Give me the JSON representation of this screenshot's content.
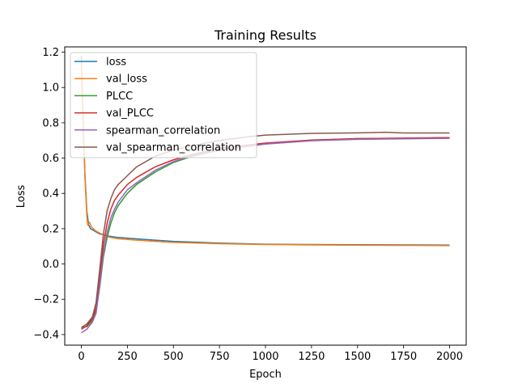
{
  "chart_data": {
    "type": "line",
    "title": "Training Results",
    "xlabel": "Epoch",
    "ylabel": "Loss",
    "xlim": [
      -90,
      2090
    ],
    "ylim": [
      -0.46,
      1.23
    ],
    "xticks": [
      0,
      250,
      500,
      750,
      1000,
      1250,
      1500,
      1750,
      2000
    ],
    "yticks": [
      -0.4,
      -0.2,
      0.0,
      0.2,
      0.4,
      0.6,
      0.8,
      1.0,
      1.2
    ],
    "ytick_labels": [
      "−0.4",
      "−0.2",
      "0.0",
      "0.2",
      "0.4",
      "0.6",
      "0.8",
      "1.0",
      "1.2"
    ],
    "grid": false,
    "legend_position": "top-left",
    "series": [
      {
        "name": "loss",
        "color": "#1f77b4",
        "points": [
          [
            0,
            1.18
          ],
          [
            10,
            0.8
          ],
          [
            20,
            0.5
          ],
          [
            30,
            0.3
          ],
          [
            40,
            0.22
          ],
          [
            50,
            0.2
          ],
          [
            75,
            0.185
          ],
          [
            100,
            0.17
          ],
          [
            150,
            0.158
          ],
          [
            200,
            0.15
          ],
          [
            300,
            0.142
          ],
          [
            400,
            0.135
          ],
          [
            500,
            0.128
          ],
          [
            750,
            0.118
          ],
          [
            1000,
            0.112
          ],
          [
            1250,
            0.11
          ],
          [
            1500,
            0.109
          ],
          [
            1750,
            0.108
          ],
          [
            2000,
            0.107
          ]
        ]
      },
      {
        "name": "val_loss",
        "color": "#ff7f0e",
        "points": [
          [
            0,
            1.15
          ],
          [
            10,
            0.78
          ],
          [
            20,
            0.48
          ],
          [
            30,
            0.27
          ],
          [
            35,
            0.22
          ],
          [
            45,
            0.235
          ],
          [
            55,
            0.21
          ],
          [
            75,
            0.19
          ],
          [
            100,
            0.175
          ],
          [
            150,
            0.152
          ],
          [
            200,
            0.143
          ],
          [
            300,
            0.135
          ],
          [
            400,
            0.128
          ],
          [
            500,
            0.122
          ],
          [
            750,
            0.115
          ],
          [
            1000,
            0.11
          ],
          [
            1250,
            0.108
          ],
          [
            1500,
            0.106
          ],
          [
            1750,
            0.105
          ],
          [
            2000,
            0.104
          ]
        ]
      },
      {
        "name": "PLCC",
        "color": "#2ca02c",
        "points": [
          [
            0,
            -0.36
          ],
          [
            30,
            -0.355
          ],
          [
            60,
            -0.32
          ],
          [
            80,
            -0.27
          ],
          [
            100,
            -0.13
          ],
          [
            120,
            0.04
          ],
          [
            140,
            0.15
          ],
          [
            160,
            0.23
          ],
          [
            180,
            0.29
          ],
          [
            200,
            0.33
          ],
          [
            250,
            0.4
          ],
          [
            300,
            0.45
          ],
          [
            400,
            0.52
          ],
          [
            500,
            0.575
          ],
          [
            600,
            0.61
          ],
          [
            750,
            0.645
          ],
          [
            1000,
            0.68
          ],
          [
            1250,
            0.7
          ],
          [
            1500,
            0.71
          ],
          [
            1750,
            0.712
          ],
          [
            2000,
            0.715
          ]
        ]
      },
      {
        "name": "val_PLCC",
        "color": "#d62728",
        "points": [
          [
            0,
            -0.37
          ],
          [
            30,
            -0.35
          ],
          [
            60,
            -0.31
          ],
          [
            80,
            -0.25
          ],
          [
            100,
            -0.08
          ],
          [
            120,
            0.11
          ],
          [
            140,
            0.23
          ],
          [
            160,
            0.31
          ],
          [
            180,
            0.36
          ],
          [
            200,
            0.39
          ],
          [
            250,
            0.45
          ],
          [
            300,
            0.49
          ],
          [
            400,
            0.55
          ],
          [
            500,
            0.59
          ],
          [
            600,
            0.62
          ],
          [
            750,
            0.655
          ],
          [
            1000,
            0.685
          ],
          [
            1250,
            0.702
          ],
          [
            1500,
            0.71
          ],
          [
            1750,
            0.713
          ],
          [
            2000,
            0.716
          ]
        ]
      },
      {
        "name": "spearman_correlation",
        "color": "#9467bd",
        "points": [
          [
            0,
            -0.39
          ],
          [
            30,
            -0.37
          ],
          [
            60,
            -0.33
          ],
          [
            80,
            -0.28
          ],
          [
            100,
            -0.12
          ],
          [
            120,
            0.06
          ],
          [
            140,
            0.18
          ],
          [
            160,
            0.26
          ],
          [
            180,
            0.31
          ],
          [
            200,
            0.35
          ],
          [
            250,
            0.42
          ],
          [
            300,
            0.46
          ],
          [
            400,
            0.53
          ],
          [
            500,
            0.58
          ],
          [
            600,
            0.615
          ],
          [
            750,
            0.648
          ],
          [
            1000,
            0.68
          ],
          [
            1250,
            0.698
          ],
          [
            1500,
            0.706
          ],
          [
            1750,
            0.709
          ],
          [
            2000,
            0.712
          ]
        ]
      },
      {
        "name": "val_spearman_correlation",
        "color": "#8c564b",
        "points": [
          [
            0,
            -0.36
          ],
          [
            30,
            -0.34
          ],
          [
            60,
            -0.3
          ],
          [
            80,
            -0.22
          ],
          [
            100,
            -0.03
          ],
          [
            120,
            0.17
          ],
          [
            140,
            0.3
          ],
          [
            160,
            0.37
          ],
          [
            180,
            0.42
          ],
          [
            200,
            0.45
          ],
          [
            250,
            0.5
          ],
          [
            300,
            0.55
          ],
          [
            400,
            0.61
          ],
          [
            500,
            0.645
          ],
          [
            600,
            0.67
          ],
          [
            750,
            0.7
          ],
          [
            900,
            0.72
          ],
          [
            1000,
            0.73
          ],
          [
            1250,
            0.74
          ],
          [
            1500,
            0.743
          ],
          [
            1650,
            0.746
          ],
          [
            1750,
            0.742
          ],
          [
            2000,
            0.742
          ]
        ]
      }
    ]
  }
}
